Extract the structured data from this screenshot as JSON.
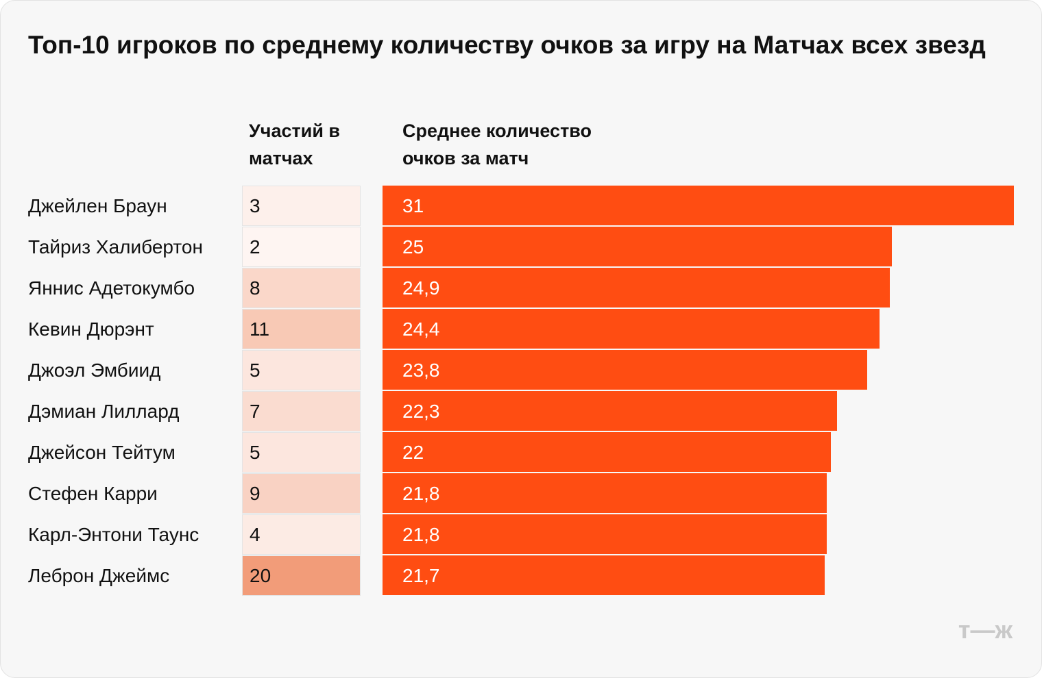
{
  "chart_data": {
    "type": "bar",
    "title": "Топ-10 игроков по среднему количеству очков за игру на Матчах всех звезд",
    "categories": [
      "Джейлен Браун",
      "Тайриз Халибертон",
      "Яннис Адетокумбо",
      "Кевин Дюрэнт",
      "Джоэл Эмбиид",
      "Дэмиан Лиллард",
      "Джейсон Тейтум",
      "Стефен Карри",
      "Карл-Энтони Таунс",
      "Леброн Джеймс"
    ],
    "appearances": {
      "name": "Участий в матчах",
      "values": [
        3,
        2,
        8,
        11,
        5,
        7,
        5,
        9,
        4,
        20
      ],
      "color_low": "#ffffff",
      "color_high": "#f29c79"
    },
    "series": [
      {
        "name": "Среднее количество очков за матч",
        "color": "#ff4d12",
        "values": [
          31,
          25,
          24.9,
          24.4,
          23.8,
          22.3,
          22,
          21.8,
          21.8,
          21.7
        ],
        "value_labels": [
          "31",
          "25",
          "24,9",
          "24,4",
          "23,8",
          "22,3",
          "22",
          "21,8",
          "21,8",
          "21,7"
        ]
      }
    ],
    "logo": "т—ж"
  }
}
